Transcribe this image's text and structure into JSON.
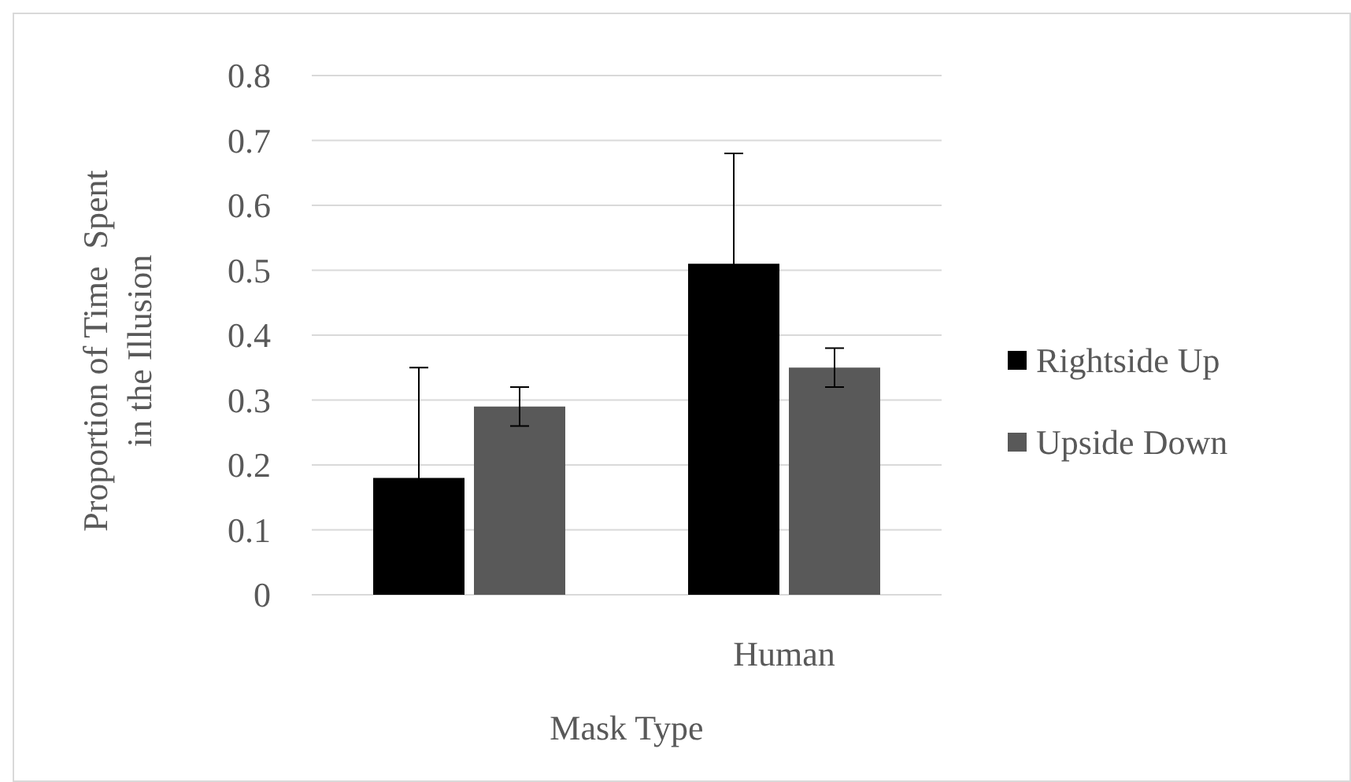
{
  "chart_data": {
    "type": "bar",
    "xlabel": "Mask Type",
    "ylabel": "Proportion of Time  Spent in the Illusion",
    "categories": [
      null,
      "Human"
    ],
    "series": [
      {
        "name": "Rightside Up",
        "color": "#000000",
        "values": [
          0.18,
          0.51
        ],
        "errors": [
          0.17,
          0.17
        ]
      },
      {
        "name": "Upside Down",
        "color": "#595959",
        "values": [
          0.29,
          0.35
        ],
        "errors": [
          0.03,
          0.03
        ]
      }
    ],
    "ylim": [
      0,
      0.8
    ],
    "yticks": [
      0,
      0.1,
      0.2,
      0.3,
      0.4,
      0.5,
      0.6,
      0.7,
      0.8
    ],
    "grid": "y",
    "legend": "right"
  }
}
